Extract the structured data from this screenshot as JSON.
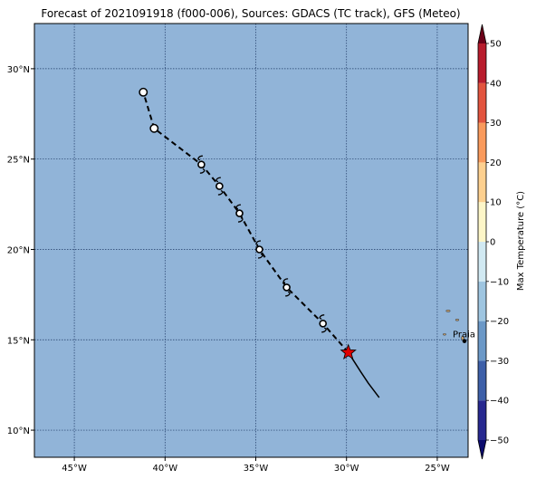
{
  "title": "Forecast of 2021091918 (f000-006), Sources: GDACS (TC track), GFS (Meteo)",
  "map": {
    "lon_range": [
      -47.2,
      -23.3
    ],
    "lat_range": [
      8.5,
      32.5
    ],
    "ocean_color": "#91b4d8",
    "lon_ticks": [
      {
        "value": -45,
        "label": "45°W"
      },
      {
        "value": -40,
        "label": "40°W"
      },
      {
        "value": -35,
        "label": "35°W"
      },
      {
        "value": -30,
        "label": "30°W"
      },
      {
        "value": -25,
        "label": "25°W"
      }
    ],
    "lat_ticks": [
      {
        "value": 10,
        "label": "10°N"
      },
      {
        "value": 15,
        "label": "15°N"
      },
      {
        "value": 20,
        "label": "20°N"
      },
      {
        "value": 25,
        "label": "25°N"
      },
      {
        "value": 30,
        "label": "30°N"
      }
    ],
    "city": {
      "name": "Praia",
      "lon": -23.5,
      "lat": 14.93
    }
  },
  "track": {
    "current_position": {
      "lon": -29.9,
      "lat": 14.3
    },
    "past_track": [
      [
        -28.2,
        11.8
      ],
      [
        -28.8,
        12.6
      ],
      [
        -29.2,
        13.2
      ],
      [
        -29.9,
        14.3
      ]
    ],
    "forecast_track": [
      [
        -29.9,
        14.3
      ],
      [
        -31.3,
        15.9
      ],
      [
        -33.3,
        17.9
      ],
      [
        -34.8,
        20.0
      ],
      [
        -35.9,
        22.0
      ],
      [
        -37.0,
        23.5
      ],
      [
        -38.0,
        24.7
      ],
      [
        -40.6,
        26.7
      ],
      [
        -41.2,
        28.7
      ]
    ],
    "hurricane_points": [
      [
        -31.3,
        15.9
      ],
      [
        -33.3,
        17.9
      ],
      [
        -34.8,
        20.0
      ],
      [
        -35.9,
        22.0
      ],
      [
        -37.0,
        23.5
      ],
      [
        -38.0,
        24.7
      ]
    ],
    "extratropical_points": [
      [
        -40.6,
        26.7
      ],
      [
        -41.2,
        28.7
      ]
    ]
  },
  "colorbar": {
    "label": "Max Temperature (°C)",
    "min": -50,
    "max": 50,
    "levels": [
      -50,
      -40,
      -30,
      -20,
      -10,
      0,
      10,
      20,
      30,
      40,
      50
    ],
    "tick_labels": [
      "−50",
      "−40",
      "−30",
      "−20",
      "−10",
      "0",
      "10",
      "20",
      "30",
      "40",
      "50"
    ],
    "band_colors": [
      "#27288f",
      "#3d5fa8",
      "#6b98c7",
      "#9ec5e0",
      "#d1e9f2",
      "#fdf6c8",
      "#fdd08f",
      "#f99a5c",
      "#e2543e",
      "#b81c2d"
    ],
    "under_color": "#0c0c6e",
    "over_color": "#6b0019"
  }
}
